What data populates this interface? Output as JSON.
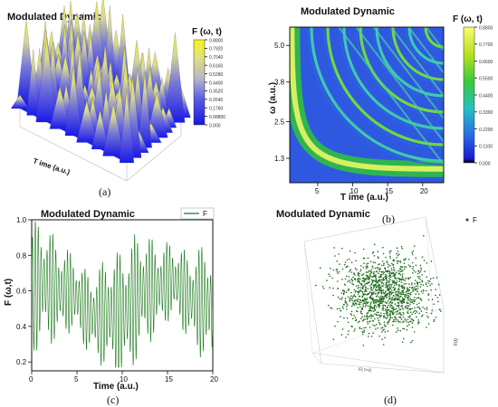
{
  "chart_data": [
    {
      "id": "a",
      "type": "surface3d",
      "title": "Modulated Dynamic",
      "colorbar_title": "F (ω, t)",
      "colorbar_ticks": [
        "0.8800",
        "0.7920",
        "0.7040",
        "0.6160",
        "0.5280",
        "0.4400",
        "0.3520",
        "0.2640",
        "0.1760",
        "0.08800",
        "0.000"
      ],
      "x_label": "T ime (a.u.)",
      "caption": "(a)"
    },
    {
      "id": "b",
      "type": "heatmap",
      "title": "Modulated Dynamic",
      "colorbar_title": "F (ω, t)",
      "colorbar_ticks": [
        "0.8800",
        "0.7700",
        "0.6600",
        "0.5500",
        "0.4400",
        "0.3300",
        "0.2200",
        "0.1100",
        "0.000"
      ],
      "xlabel": "T ime (a.u.)",
      "ylabel": "ω (a.u.)",
      "x_ticks": [
        "5",
        "10",
        "15",
        "20"
      ],
      "y_ticks": [
        "1.3",
        "2.5",
        "3.8",
        "5.0"
      ],
      "xlim": [
        1,
        23
      ],
      "ylim": [
        0.5,
        5.6
      ],
      "caption": "(b)"
    },
    {
      "id": "c",
      "type": "line",
      "title": "Modulated Dynamic",
      "xlabel": "Time (a.u.)",
      "ylabel": "F (ω,t)",
      "xlim": [
        0,
        20
      ],
      "ylim": [
        0.15,
        1.0
      ],
      "x_ticks": [
        "0",
        "5",
        "10",
        "15",
        "20"
      ],
      "y_ticks": [
        "0.2",
        "0.4",
        "0.6",
        "0.8",
        "1.0"
      ],
      "series": [
        {
          "name": "F",
          "color": "#1e7b1e"
        }
      ],
      "legend_position": "top-right",
      "caption": "(c)"
    },
    {
      "id": "d",
      "type": "scatter3d",
      "title": "Modulated Dynamic",
      "series": [
        {
          "name": "F",
          "color": "#1e6b1e"
        }
      ],
      "x_label": "F( t+τ)",
      "z_label": "F(t)",
      "legend_position": "top-right",
      "caption": "(d)"
    }
  ]
}
